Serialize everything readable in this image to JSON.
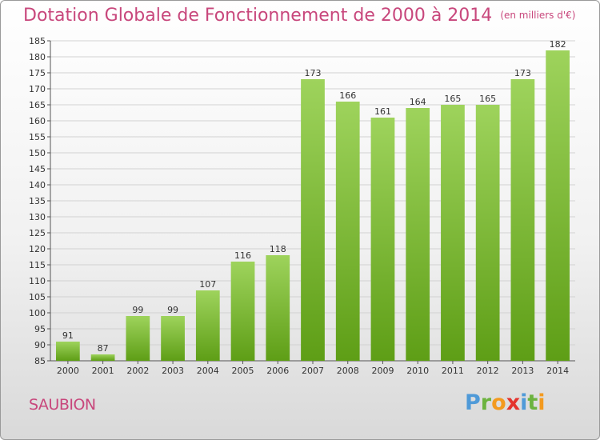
{
  "title": "Dotation Globale de Fonctionnement de 2000 à 2014",
  "unit_note": "(en milliers d'€)",
  "commune": "SAUBION",
  "logo": {
    "letters": [
      "P",
      "r",
      "o",
      "x",
      "i",
      "t",
      "i"
    ],
    "colors": [
      "#4f9ad8",
      "#6cb33f",
      "#f39a1f",
      "#e4342e",
      "#4f9ad8",
      "#6cb33f",
      "#f39a1f"
    ]
  },
  "colors": {
    "accent": "#c8477c",
    "bar_light": "#9ed35c",
    "bar_dark": "#5e9e16"
  },
  "chart_data": {
    "type": "bar",
    "title": "Dotation Globale de Fonctionnement de 2000 à 2014",
    "xlabel": "",
    "ylabel": "",
    "categories": [
      "2000",
      "2001",
      "2002",
      "2003",
      "2004",
      "2005",
      "2006",
      "2007",
      "2008",
      "2009",
      "2010",
      "2011",
      "2012",
      "2013",
      "2014"
    ],
    "values": [
      91,
      87,
      99,
      99,
      107,
      116,
      118,
      173,
      166,
      161,
      164,
      165,
      165,
      173,
      182
    ],
    "ylim": [
      85,
      185
    ],
    "yticks": [
      85,
      90,
      95,
      100,
      105,
      110,
      115,
      120,
      125,
      130,
      135,
      140,
      145,
      150,
      155,
      160,
      165,
      170,
      175,
      180,
      185
    ],
    "grid": true
  }
}
